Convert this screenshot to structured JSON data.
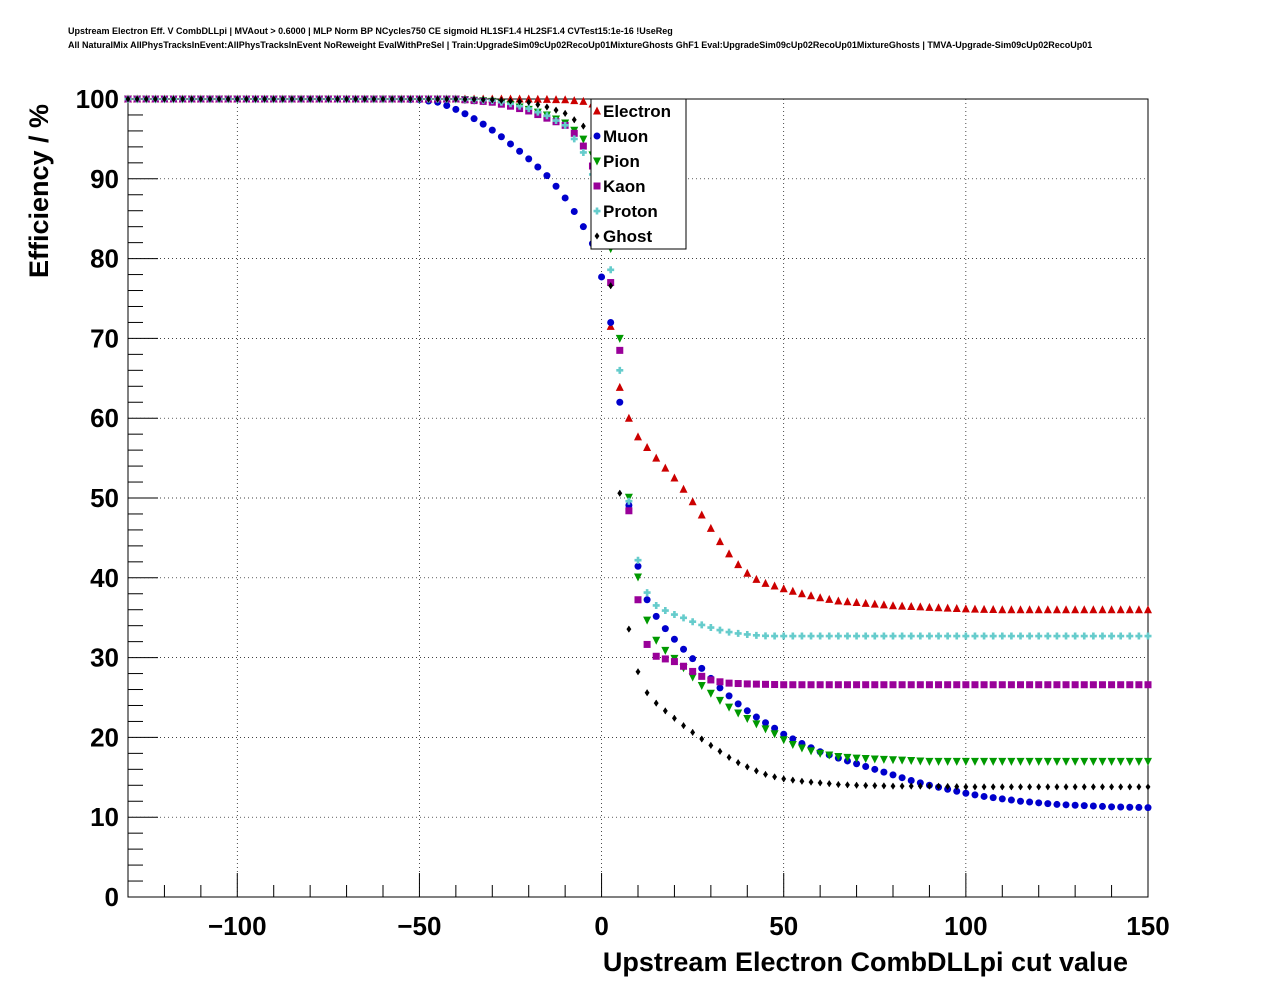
{
  "header": {
    "line1": "Upstream Electron Eff. V CombDLLpi | MVAout > 0.6000 | MLP Norm BP NCycles750 CE sigmoid HL1SF1.4 HL2SF1.4 CVTest15:1e-16 !UseReg",
    "line2": "All NaturalMix AllPhysTracksInEvent:AllPhysTracksInEvent NoReweight EvalWithPreSel | Train:UpgradeSim09cUp02RecoUp01MixtureGhosts GhF1 Eval:UpgradeSim09cUp02RecoUp01MixtureGhosts | TMVA-Upgrade-Sim09cUp02RecoUp01"
  },
  "chart_data": {
    "type": "scatter",
    "xlabel": "Upstream Electron CombDLLpi cut value",
    "ylabel": "Efficiency / %",
    "xlim": [
      -130,
      150
    ],
    "ylim": [
      0,
      100
    ],
    "xticks": [
      -100,
      -50,
      0,
      50,
      100,
      150
    ],
    "xtick_labels": [
      "−100",
      "−50",
      "0",
      "50",
      "100",
      "150"
    ],
    "yticks": [
      0,
      10,
      20,
      30,
      40,
      50,
      60,
      70,
      80,
      90,
      100
    ],
    "yticks_labels": [
      "0",
      "10",
      "20",
      "30",
      "40",
      "50",
      "60",
      "70",
      "80",
      "90",
      "100"
    ],
    "grid": true,
    "legend_position": "top-center",
    "series": [
      {
        "name": "Electron",
        "color": "#cc0000",
        "marker": "triangle-up",
        "points": [
          [
            -130,
            100
          ],
          [
            -70,
            100
          ],
          [
            -50,
            100
          ],
          [
            -40,
            100
          ],
          [
            -30,
            100
          ],
          [
            -20,
            100
          ],
          [
            -10,
            99.9
          ],
          [
            -5,
            99.7
          ],
          [
            -2,
            99.3
          ],
          [
            0,
            97
          ],
          [
            1,
            88
          ],
          [
            2,
            75
          ],
          [
            3,
            68
          ],
          [
            6,
            61.8
          ],
          [
            9,
            58.2
          ],
          [
            12,
            56.6
          ],
          [
            15,
            55
          ],
          [
            18,
            53.5
          ],
          [
            21,
            52
          ],
          [
            24,
            50.2
          ],
          [
            27,
            48.2
          ],
          [
            30,
            46.2
          ],
          [
            33,
            44.2
          ],
          [
            36,
            42.4
          ],
          [
            39,
            40.9
          ],
          [
            42,
            39.9
          ],
          [
            45,
            39.3
          ],
          [
            48,
            38.9
          ],
          [
            51,
            38.5
          ],
          [
            55,
            38
          ],
          [
            60,
            37.5
          ],
          [
            65,
            37.1
          ],
          [
            70,
            36.9
          ],
          [
            75,
            36.7
          ],
          [
            80,
            36.5
          ],
          [
            90,
            36.3
          ],
          [
            100,
            36.1
          ],
          [
            110,
            36
          ],
          [
            120,
            36
          ],
          [
            130,
            36
          ],
          [
            140,
            36
          ],
          [
            150,
            36
          ]
        ]
      },
      {
        "name": "Muon",
        "color": "#0000cc",
        "marker": "circle",
        "points": [
          [
            -130,
            100
          ],
          [
            -60,
            100
          ],
          [
            -50,
            99.9
          ],
          [
            -45,
            99.6
          ],
          [
            -42,
            99.1
          ],
          [
            -39,
            98.5
          ],
          [
            -36,
            97.8
          ],
          [
            -33,
            97
          ],
          [
            -30,
            96.1
          ],
          [
            -27,
            95.1
          ],
          [
            -24,
            94
          ],
          [
            -21,
            92.9
          ],
          [
            -18,
            91.7
          ],
          [
            -15,
            90.4
          ],
          [
            -12,
            88.8
          ],
          [
            -9,
            87
          ],
          [
            -6,
            84.8
          ],
          [
            -3,
            82.4
          ],
          [
            -1,
            80.3
          ],
          [
            0,
            77.7
          ],
          [
            2,
            75
          ],
          [
            3,
            69
          ],
          [
            5,
            62
          ],
          [
            7,
            50.7
          ],
          [
            9,
            44.2
          ],
          [
            11,
            38.7
          ],
          [
            14,
            35.8
          ],
          [
            17,
            33.9
          ],
          [
            20,
            32.3
          ],
          [
            23,
            30.8
          ],
          [
            26,
            29.4
          ],
          [
            29,
            27.9
          ],
          [
            32,
            26.4
          ],
          [
            35,
            25.2
          ],
          [
            38,
            24
          ],
          [
            41,
            23
          ],
          [
            44,
            22.1
          ],
          [
            47,
            21.3
          ],
          [
            50,
            20.4
          ],
          [
            53,
            19.7
          ],
          [
            56,
            19
          ],
          [
            60,
            18.2
          ],
          [
            65,
            17.4
          ],
          [
            70,
            16.7
          ],
          [
            75,
            16
          ],
          [
            80,
            15.3
          ],
          [
            85,
            14.6
          ],
          [
            90,
            14
          ],
          [
            95,
            13.5
          ],
          [
            100,
            13
          ],
          [
            105,
            12.6
          ],
          [
            110,
            12.3
          ],
          [
            115,
            12
          ],
          [
            120,
            11.8
          ],
          [
            125,
            11.6
          ],
          [
            130,
            11.5
          ],
          [
            140,
            11.3
          ],
          [
            150,
            11.2
          ]
        ]
      },
      {
        "name": "Pion",
        "color": "#009900",
        "marker": "triangle-down",
        "points": [
          [
            -130,
            100
          ],
          [
            -60,
            100
          ],
          [
            -40,
            100
          ],
          [
            -30,
            99.7
          ],
          [
            -25,
            99.3
          ],
          [
            -20,
            98.7
          ],
          [
            -15,
            98
          ],
          [
            -10,
            97
          ],
          [
            -7,
            95.9
          ],
          [
            -4,
            94.5
          ],
          [
            -2,
            92.5
          ],
          [
            0,
            87
          ],
          [
            2,
            84
          ],
          [
            3,
            78.5
          ],
          [
            5,
            70
          ],
          [
            6,
            62
          ],
          [
            7,
            52.3
          ],
          [
            9,
            43.5
          ],
          [
            11,
            36.7
          ],
          [
            14,
            32.7
          ],
          [
            17,
            31.1
          ],
          [
            20,
            29.9
          ],
          [
            23,
            28.5
          ],
          [
            26,
            27.1
          ],
          [
            29,
            25.9
          ],
          [
            32,
            24.8
          ],
          [
            35,
            23.8
          ],
          [
            38,
            22.9
          ],
          [
            41,
            22.1
          ],
          [
            44,
            21.3
          ],
          [
            47,
            20.6
          ],
          [
            50,
            19.7
          ],
          [
            53,
            19
          ],
          [
            56,
            18.5
          ],
          [
            60,
            18
          ],
          [
            65,
            17.6
          ],
          [
            70,
            17.4
          ],
          [
            80,
            17.2
          ],
          [
            90,
            17
          ],
          [
            100,
            17
          ],
          [
            120,
            17
          ],
          [
            140,
            17
          ],
          [
            150,
            17
          ]
        ]
      },
      {
        "name": "Kaon",
        "color": "#990099",
        "marker": "square",
        "points": [
          [
            -130,
            100
          ],
          [
            -60,
            100
          ],
          [
            -40,
            100
          ],
          [
            -30,
            99.6
          ],
          [
            -25,
            99.1
          ],
          [
            -20,
            98.5
          ],
          [
            -15,
            97.6
          ],
          [
            -10,
            96.7
          ],
          [
            -7,
            95.5
          ],
          [
            -4,
            93.4
          ],
          [
            -2,
            91
          ],
          [
            0,
            87
          ],
          [
            2,
            80
          ],
          [
            3,
            74
          ],
          [
            5,
            68.5
          ],
          [
            7,
            50.7
          ],
          [
            9,
            41.5
          ],
          [
            11,
            33
          ],
          [
            14,
            30.3
          ],
          [
            17,
            29.9
          ],
          [
            20,
            29.5
          ],
          [
            23,
            28.8
          ],
          [
            26,
            28
          ],
          [
            29,
            27.3
          ],
          [
            32,
            27
          ],
          [
            35,
            26.8
          ],
          [
            40,
            26.7
          ],
          [
            50,
            26.6
          ],
          [
            60,
            26.6
          ],
          [
            80,
            26.6
          ],
          [
            100,
            26.6
          ],
          [
            120,
            26.6
          ],
          [
            140,
            26.6
          ],
          [
            150,
            26.6
          ]
        ]
      },
      {
        "name": "Proton",
        "color": "#66cccc",
        "marker": "cross",
        "points": [
          [
            -130,
            100
          ],
          [
            -60,
            100
          ],
          [
            -40,
            100
          ],
          [
            -30,
            99.8
          ],
          [
            -25,
            99.4
          ],
          [
            -20,
            98.8
          ],
          [
            -15,
            97.9
          ],
          [
            -10,
            96.7
          ],
          [
            -5,
            93.3
          ],
          [
            -2,
            90
          ],
          [
            0,
            87
          ],
          [
            2,
            80
          ],
          [
            3,
            77.2
          ],
          [
            5,
            66
          ],
          [
            6,
            55.6
          ],
          [
            8,
            47.6
          ],
          [
            11,
            39.5
          ],
          [
            14,
            36.8
          ],
          [
            17,
            36
          ],
          [
            20,
            35.4
          ],
          [
            23,
            34.9
          ],
          [
            26,
            34.3
          ],
          [
            29,
            33.9
          ],
          [
            32,
            33.5
          ],
          [
            35,
            33.2
          ],
          [
            38,
            33
          ],
          [
            42,
            32.8
          ],
          [
            46,
            32.7
          ],
          [
            50,
            32.7
          ],
          [
            60,
            32.7
          ],
          [
            80,
            32.7
          ],
          [
            100,
            32.7
          ],
          [
            120,
            32.7
          ],
          [
            140,
            32.7
          ],
          [
            150,
            32.7
          ]
        ]
      },
      {
        "name": "Ghost",
        "color": "#000000",
        "marker": "diamond",
        "points": [
          [
            -130,
            100
          ],
          [
            -60,
            100
          ],
          [
            -40,
            100
          ],
          [
            -30,
            99.9
          ],
          [
            -20,
            99.6
          ],
          [
            -15,
            99
          ],
          [
            -10,
            98.2
          ],
          [
            -5,
            96.6
          ],
          [
            -2,
            94.8
          ],
          [
            0,
            91
          ],
          [
            2,
            82.7
          ],
          [
            3,
            70.5
          ],
          [
            4,
            62
          ],
          [
            6,
            39.2
          ],
          [
            8,
            31.7
          ],
          [
            11,
            26.5
          ],
          [
            14,
            24.7
          ],
          [
            17,
            23.5
          ],
          [
            20,
            22.4
          ],
          [
            23,
            21.3
          ],
          [
            26,
            20.3
          ],
          [
            29,
            19.3
          ],
          [
            32,
            18.4
          ],
          [
            35,
            17.5
          ],
          [
            38,
            16.7
          ],
          [
            41,
            16.1
          ],
          [
            44,
            15.5
          ],
          [
            47,
            15.1
          ],
          [
            50,
            14.8
          ],
          [
            55,
            14.5
          ],
          [
            60,
            14.3
          ],
          [
            65,
            14.1
          ],
          [
            70,
            14
          ],
          [
            80,
            13.9
          ],
          [
            90,
            13.9
          ],
          [
            100,
            13.8
          ],
          [
            110,
            13.8
          ],
          [
            120,
            13.8
          ],
          [
            130,
            13.8
          ],
          [
            140,
            13.8
          ],
          [
            150,
            13.8
          ]
        ]
      }
    ]
  }
}
